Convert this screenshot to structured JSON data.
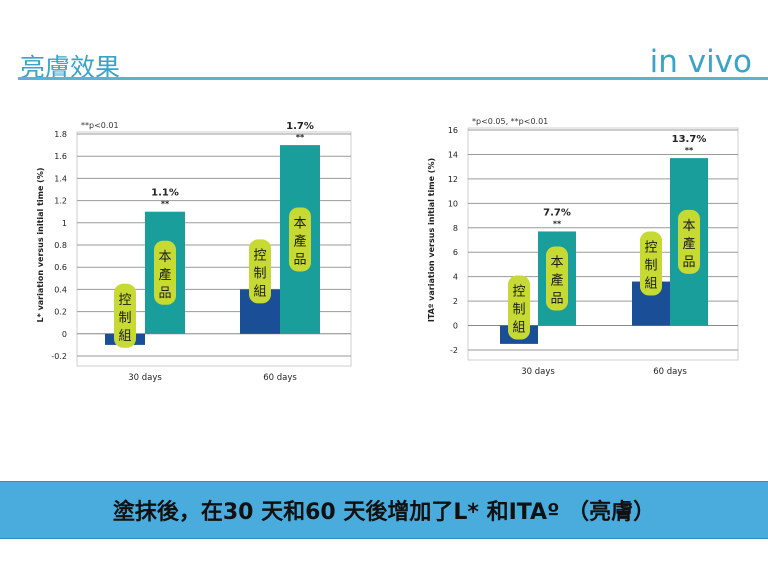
{
  "header": {
    "title": "亮膚效果",
    "subtitle": "in vivo"
  },
  "chart_data": [
    {
      "type": "bar",
      "significance_note": "**p<0.01",
      "ylabel": "L* variation versus initial time (%)",
      "ylim": [
        -0.2,
        1.8
      ],
      "yticks": [
        -0.2,
        0,
        0.2,
        0.4,
        0.6,
        0.8,
        1,
        1.2,
        1.4,
        1.6,
        1.8
      ],
      "categories": [
        "30 days",
        "60 days"
      ],
      "series": [
        {
          "name": "控制組",
          "values": [
            -0.1,
            0.4
          ],
          "color": "#1a4f97",
          "labels": [
            "",
            ""
          ]
        },
        {
          "name": "本產品",
          "values": [
            1.1,
            1.7
          ],
          "color": "#1a9e9b",
          "labels": [
            "1.1%\n**",
            "1.7%\n**"
          ]
        }
      ]
    },
    {
      "type": "bar",
      "significance_note": "*p<0.05, **p<0.01",
      "ylabel": "ITAº variation versus initial time (%)",
      "ylim": [
        -2,
        16
      ],
      "yticks": [
        -2,
        0,
        2,
        4,
        6,
        8,
        10,
        12,
        14,
        16
      ],
      "categories": [
        "30 days",
        "60 days"
      ],
      "series": [
        {
          "name": "控制組",
          "values": [
            -1.5,
            3.6
          ],
          "color": "#1a4f97",
          "labels": [
            "",
            ""
          ]
        },
        {
          "name": "本產品",
          "values": [
            7.7,
            13.7
          ],
          "color": "#1a9e9b",
          "labels": [
            "7.7%\n**",
            "13.7%\n**"
          ]
        }
      ]
    }
  ],
  "banner": {
    "text": "塗抹後，在30 天和60 天後增加了L* 和ITAº （亮膚）"
  }
}
